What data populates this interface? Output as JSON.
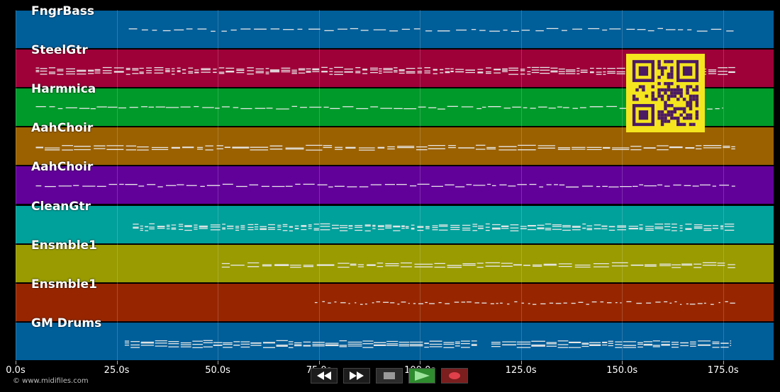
{
  "tracks": [
    {
      "name": "FngrBass",
      "color": "#005e99",
      "style": "sparse-bass",
      "start": 28,
      "end": 178
    },
    {
      "name": "SteelGtr",
      "color": "#9e0038",
      "style": "dense",
      "start": 5,
      "end": 178
    },
    {
      "name": "Harmnica",
      "color": "#009a2a",
      "style": "melody",
      "start": 5,
      "end": 175
    },
    {
      "name": "AahChoir",
      "color": "#9b6100",
      "style": "chords",
      "start": 5,
      "end": 178
    },
    {
      "name": "AahChoir",
      "color": "#62009a",
      "style": "melody",
      "start": 5,
      "end": 178
    },
    {
      "name": "CleanGtr",
      "color": "#00a09b",
      "style": "dense",
      "start": 29,
      "end": 178
    },
    {
      "name": "Ensmble1",
      "color": "#999b00",
      "style": "chords",
      "start": 51,
      "end": 178
    },
    {
      "name": "Ensmble1",
      "color": "#972600",
      "style": "arpeggio",
      "start": 74,
      "end": 178
    },
    {
      "name": "GM Drums",
      "color": "#005e99",
      "style": "drums",
      "start": 27,
      "end": 177
    }
  ],
  "axis": {
    "unit": "s",
    "max_seconds": 187.5,
    "ticks": [
      "0.0s",
      "25.0s",
      "50.0s",
      "75.0s",
      "100.0s",
      "125.0s",
      "150.0s",
      "175.0s"
    ],
    "tick_values": [
      0,
      25,
      50,
      75,
      100,
      125,
      150,
      175
    ]
  },
  "copyright": "© www.midifiles.com",
  "transport": {
    "buttons": [
      {
        "name": "rewind-button",
        "icon": "rewind-icon"
      },
      {
        "name": "fast-forward-button",
        "icon": "fast-forward-icon"
      },
      {
        "name": "stop-button",
        "icon": "stop-icon"
      },
      {
        "name": "play-button",
        "icon": "play-icon"
      },
      {
        "name": "record-button",
        "icon": "record-icon"
      }
    ]
  },
  "qr_code": {
    "color": "#f4e51f",
    "module_color": "#4b1a63"
  }
}
